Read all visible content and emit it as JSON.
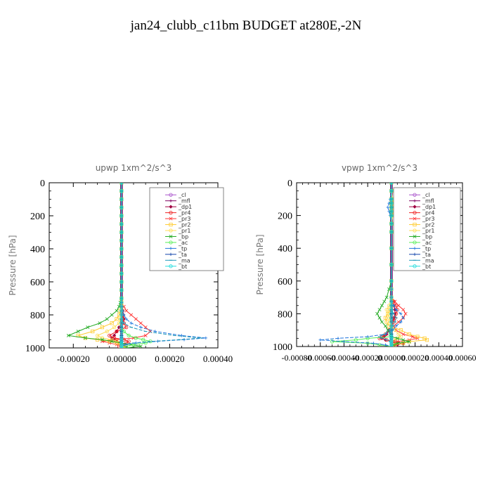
{
  "figure": {
    "title": "jan24_clubb_c11bm  BUDGET at280E,-2N"
  },
  "chart_data": [
    {
      "type": "line",
      "title": "upwp   1xm^2/s^3",
      "ylabel": "Pressure [hPa]",
      "xlabel": "",
      "xlim": [
        -0.0003,
        0.0004
      ],
      "ylim": [
        1000,
        0
      ],
      "x_ticks": [
        "-0.00020",
        "0.00000",
        "0.00020",
        "0.00040"
      ],
      "x_tick_values": [
        -0.0002,
        0.0,
        0.0002,
        0.0004
      ],
      "y_ticks": [
        "0",
        "200",
        "400",
        "600",
        "800",
        "1000"
      ],
      "y_tick_values": [
        0,
        200,
        400,
        600,
        800,
        1000
      ],
      "grid": false,
      "legend_position": "top-right",
      "levels": [
        0,
        50,
        100,
        150,
        200,
        250,
        300,
        350,
        400,
        450,
        500,
        550,
        600,
        650,
        700,
        725,
        750,
        775,
        800,
        825,
        850,
        875,
        900,
        925,
        940,
        950,
        960,
        970,
        980,
        990,
        1000
      ],
      "series": [
        {
          "name": "_cl",
          "color": "#aa55cc",
          "values": [
            0,
            0,
            0,
            0,
            0,
            0,
            0,
            0,
            0,
            0,
            0,
            0,
            0,
            0,
            0,
            0,
            0,
            0,
            0,
            0,
            0,
            0,
            0,
            0,
            0,
            0,
            0,
            0,
            0,
            0,
            0
          ]
        },
        {
          "name": "_mfl",
          "color": "#800060",
          "values": [
            0,
            0,
            0,
            0,
            0,
            0,
            0,
            0,
            0,
            0,
            0,
            0,
            0,
            0,
            0,
            0,
            0,
            0,
            0,
            0,
            0,
            0,
            0,
            0,
            0,
            0,
            0,
            0,
            0,
            0,
            0
          ]
        },
        {
          "name": "_dp1",
          "color": "#a00040",
          "values": [
            0,
            0,
            0,
            0,
            0,
            0,
            0,
            0,
            0,
            0,
            0,
            0,
            0,
            0,
            0,
            0,
            3e-06,
            5e-06,
            8e-06,
            1e-05,
            5e-06,
            -1e-05,
            -2e-05,
            -3e-05,
            -4e-05,
            -3e-05,
            -2e-05,
            -1e-05,
            0,
            1e-05,
            2e-05
          ]
        },
        {
          "name": "_pr4",
          "color": "#ee2222",
          "values": [
            0,
            0,
            0,
            0,
            0,
            0,
            0,
            0,
            0,
            0,
            0,
            0,
            0,
            0,
            0,
            0,
            2e-06,
            4e-06,
            5e-06,
            8e-06,
            1e-05,
            2e-05,
            -2e-05,
            -5e-05,
            -3e-05,
            1e-05,
            3e-05,
            2e-05,
            0,
            -1e-05,
            0
          ]
        },
        {
          "name": "_pr3",
          "color": "#ff3333",
          "values": [
            0,
            0,
            0,
            0,
            0,
            0,
            0,
            0,
            0,
            0,
            0,
            0,
            0,
            0,
            0,
            0,
            1e-05,
            2e-05,
            4e-05,
            6e-05,
            8e-05,
            0.0001,
            0.00012,
            0.0001,
            5e-05,
            -2e-05,
            -8e-05,
            -5e-05,
            -2e-05,
            1e-05,
            0
          ]
        },
        {
          "name": "_pr2",
          "color": "#ffcc33",
          "values": [
            0,
            0,
            0,
            0,
            0,
            0,
            0,
            0,
            0,
            0,
            0,
            0,
            0,
            0,
            0,
            0,
            0,
            -5e-06,
            -1e-05,
            -2e-05,
            -4e-05,
            -8e-05,
            -0.00012,
            -0.00018,
            -0.00015,
            -0.0001,
            -5e-05,
            -2e-05,
            0,
            1e-05,
            0
          ]
        },
        {
          "name": "_pr1",
          "color": "#ffdd55",
          "values": [
            0,
            0,
            0,
            0,
            0,
            0,
            0,
            0,
            0,
            0,
            0,
            0,
            0,
            0,
            0,
            0,
            0,
            0,
            0,
            -5e-06,
            -1e-05,
            -3e-05,
            -6e-05,
            -0.0001,
            -8e-05,
            -4e-05,
            -2e-05,
            -1e-05,
            0,
            0,
            0
          ]
        },
        {
          "name": "_bp",
          "color": "#22aa22",
          "values": [
            0,
            0,
            0,
            0,
            0,
            0,
            0,
            0,
            0,
            0,
            0,
            0,
            0,
            0,
            0,
            -5e-06,
            -1e-05,
            -2e-05,
            -4e-05,
            -6e-05,
            -9e-05,
            -0.00014,
            -0.00018,
            -0.00022,
            -0.00015,
            -8e-05,
            -4e-05,
            0,
            4e-05,
            8e-05,
            2e-05
          ]
        },
        {
          "name": "_ac",
          "color": "#55ee55",
          "values": [
            0,
            0,
            0,
            0,
            0,
            0,
            0,
            0,
            0,
            0,
            0,
            0,
            0,
            0,
            0,
            0,
            0,
            0,
            0,
            0,
            0,
            0,
            1e-05,
            3e-05,
            6e-05,
            9e-05,
            0.00012,
            0.0001,
            5e-05,
            2e-05,
            0
          ]
        },
        {
          "name": "_tp",
          "color": "#2277dd",
          "values": [
            0,
            0,
            0,
            0,
            0,
            0,
            0,
            0,
            0,
            0,
            0,
            0,
            0,
            0,
            0,
            0,
            0,
            5e-06,
            1e-05,
            2e-05,
            4e-05,
            8e-05,
            0.00014,
            0.00025,
            0.00035,
            0.00026,
            0.00015,
            6e-05,
            2e-05,
            0,
            0
          ]
        },
        {
          "name": "_ta",
          "color": "#1144aa",
          "values": [
            0,
            0,
            0,
            0,
            0,
            0,
            0,
            0,
            0,
            0,
            0,
            0,
            0,
            0,
            0,
            0,
            0,
            0,
            0,
            0,
            0,
            0,
            0,
            0,
            0,
            0,
            0,
            0,
            0,
            0,
            0
          ]
        },
        {
          "name": "_ma",
          "color": "#2299bb",
          "values": [
            0,
            0,
            0,
            0,
            0,
            0,
            0,
            0,
            0,
            0,
            0,
            0,
            0,
            0,
            0,
            0,
            0,
            0,
            0,
            0,
            1e-05,
            4e-05,
            0.0001,
            0.00022,
            0.00033,
            0.00024,
            0.00013,
            5e-05,
            1e-05,
            0,
            0
          ]
        },
        {
          "name": "_bt",
          "color": "#22dddd",
          "values": [
            0,
            0,
            0,
            0,
            0,
            0,
            0,
            0,
            0,
            0,
            0,
            0,
            0,
            0,
            0,
            0,
            0,
            0,
            0,
            0,
            0,
            0,
            0,
            0,
            0,
            0,
            0,
            0,
            0,
            0,
            0
          ]
        }
      ]
    },
    {
      "type": "line",
      "title": "vpwp   1xm^2/s^3",
      "ylabel": "Pressure [hPa]",
      "xlabel": "",
      "xlim": [
        -0.0008,
        0.0006
      ],
      "ylim": [
        1000,
        0
      ],
      "x_ticks": [
        "-0.00080",
        "-0.00060",
        "-0.00040",
        "-0.00020",
        "0.00000",
        "0.00020",
        "0.00040",
        "0.00060"
      ],
      "x_tick_values": [
        -0.0008,
        -0.0006,
        -0.0004,
        -0.0002,
        0.0,
        0.0002,
        0.0004,
        0.0006
      ],
      "y_ticks": [
        "0",
        "200",
        "400",
        "600",
        "800",
        "1000"
      ],
      "y_tick_values": [
        0,
        200,
        400,
        600,
        800,
        1000
      ],
      "grid": false,
      "legend_position": "top-right",
      "levels": [
        0,
        50,
        100,
        125,
        150,
        175,
        200,
        250,
        300,
        400,
        500,
        600,
        650,
        700,
        725,
        750,
        775,
        800,
        825,
        850,
        875,
        900,
        925,
        940,
        950,
        960,
        970,
        980,
        990,
        1000
      ],
      "series": [
        {
          "name": "_cl",
          "color": "#aa55cc",
          "values": [
            0,
            0,
            0,
            0,
            0,
            0,
            0,
            0,
            0,
            0,
            0,
            0,
            0,
            0,
            0,
            0,
            0,
            0,
            0,
            0,
            0,
            0,
            0,
            0,
            0,
            0,
            0,
            0,
            0,
            0
          ]
        },
        {
          "name": "_mfl",
          "color": "#800060",
          "values": [
            0,
            0,
            0,
            0,
            0,
            0,
            0,
            0,
            0,
            0,
            0,
            0,
            0,
            0,
            0,
            0,
            0,
            0,
            0,
            0,
            0,
            0,
            0,
            0,
            0,
            0,
            0,
            0,
            0,
            0
          ]
        },
        {
          "name": "_dp1",
          "color": "#a00040",
          "values": [
            0,
            0,
            0,
            0,
            0,
            0,
            0,
            0,
            0,
            0,
            0,
            0,
            0,
            0,
            1e-05,
            2e-05,
            3e-05,
            3e-05,
            2e-05,
            1e-05,
            0,
            -2e-05,
            -4e-05,
            -6e-05,
            -8e-05,
            -5e-05,
            2e-05,
            0.0001,
            5e-05,
            0
          ]
        },
        {
          "name": "_pr4",
          "color": "#ee2222",
          "values": [
            0,
            0,
            0,
            0,
            0,
            0,
            0,
            0,
            0,
            0,
            0,
            0,
            0,
            0,
            2e-05,
            4e-05,
            5e-05,
            4e-05,
            3e-05,
            2e-05,
            0,
            -2e-05,
            -5e-05,
            -8e-05,
            -0.0001,
            -4e-05,
            3e-05,
            6e-05,
            2e-05,
            0
          ]
        },
        {
          "name": "_pr3",
          "color": "#ff3333",
          "values": [
            0,
            0,
            0,
            0,
            0,
            0,
            0,
            0,
            0,
            0,
            0,
            0,
            0,
            0,
            3e-05,
            6e-05,
            0.0001,
            0.00012,
            0.0001,
            6e-05,
            2e-05,
            4e-05,
            0.0001,
            0.00018,
            0.00022,
            0.00015,
            5e-05,
            0,
            0,
            0
          ]
        },
        {
          "name": "_pr2",
          "color": "#ffcc33",
          "values": [
            0,
            0,
            0,
            0,
            0,
            0,
            0,
            0,
            0,
            0,
            0,
            0,
            0,
            0,
            0,
            0,
            -1e-05,
            -3e-05,
            -5e-05,
            -4e-05,
            -2e-05,
            8e-05,
            0.00015,
            0.00022,
            0.00028,
            0.0003,
            0.00015,
            0.0001,
            3e-05,
            0
          ]
        },
        {
          "name": "_pr1",
          "color": "#ffdd55",
          "values": [
            0,
            0,
            1e-05,
            2e-05,
            3e-05,
            2e-05,
            1e-05,
            0,
            0,
            0,
            0,
            0,
            0,
            0,
            0,
            -2e-05,
            -4e-05,
            -3e-05,
            -2e-05,
            -1e-05,
            0,
            3e-05,
            6e-05,
            8e-05,
            5e-05,
            2e-05,
            0,
            0,
            0,
            0
          ]
        },
        {
          "name": "_bp",
          "color": "#22aa22",
          "values": [
            0,
            0,
            0,
            0,
            0,
            0,
            0,
            0,
            0,
            0,
            0,
            0,
            -2e-05,
            -4e-05,
            -6e-05,
            -8e-05,
            -0.0001,
            -0.00012,
            -0.0001,
            -8e-05,
            -5e-05,
            -3e-05,
            -1e-05,
            0,
            5e-05,
            0.0001,
            0.00015,
            5e-05,
            2e-05,
            0
          ]
        },
        {
          "name": "_ac",
          "color": "#55ee55",
          "values": [
            0,
            0,
            0,
            0,
            0,
            0,
            0,
            0,
            0,
            0,
            0,
            0,
            0,
            0,
            0,
            0,
            0,
            0,
            0,
            0,
            0,
            0,
            0,
            0,
            -0.0002,
            -0.0003,
            -0.0005,
            -0.0002,
            -0.0001,
            0
          ]
        },
        {
          "name": "_tp",
          "color": "#2277dd",
          "values": [
            0,
            0,
            -1e-05,
            -2e-05,
            -3e-05,
            -2e-05,
            -1e-05,
            0,
            0,
            0,
            0,
            0,
            0,
            0,
            0,
            2e-05,
            4e-05,
            8e-05,
            0.0001,
            8e-05,
            4e-05,
            1e-05,
            -5e-05,
            -0.0002,
            -0.00045,
            -0.0006,
            -0.0004,
            -0.00015,
            -5e-05,
            0
          ]
        },
        {
          "name": "_ta",
          "color": "#1144aa",
          "values": [
            0,
            0,
            0,
            0,
            0,
            0,
            0,
            0,
            0,
            0,
            0,
            0,
            0,
            0,
            0,
            0,
            0,
            0,
            0,
            0,
            0,
            0,
            0,
            0,
            0,
            0,
            0,
            0,
            0,
            0
          ]
        },
        {
          "name": "_ma",
          "color": "#2299bb",
          "values": [
            0,
            0,
            0,
            0,
            0,
            0,
            0,
            0,
            0,
            0,
            0,
            0,
            0,
            0,
            0,
            0,
            0,
            2e-05,
            4e-05,
            3e-05,
            1e-05,
            -2e-05,
            -6e-05,
            -0.0001,
            -8e-05,
            -4e-05,
            -1e-05,
            0,
            0,
            0
          ]
        },
        {
          "name": "_bt",
          "color": "#22dddd",
          "values": [
            0,
            0,
            0,
            0,
            0,
            0,
            0,
            0,
            0,
            0,
            0,
            0,
            0,
            0,
            0,
            0,
            0,
            0,
            0,
            0,
            0,
            0,
            0,
            0,
            0,
            0,
            0,
            0,
            0,
            0
          ]
        }
      ]
    }
  ]
}
